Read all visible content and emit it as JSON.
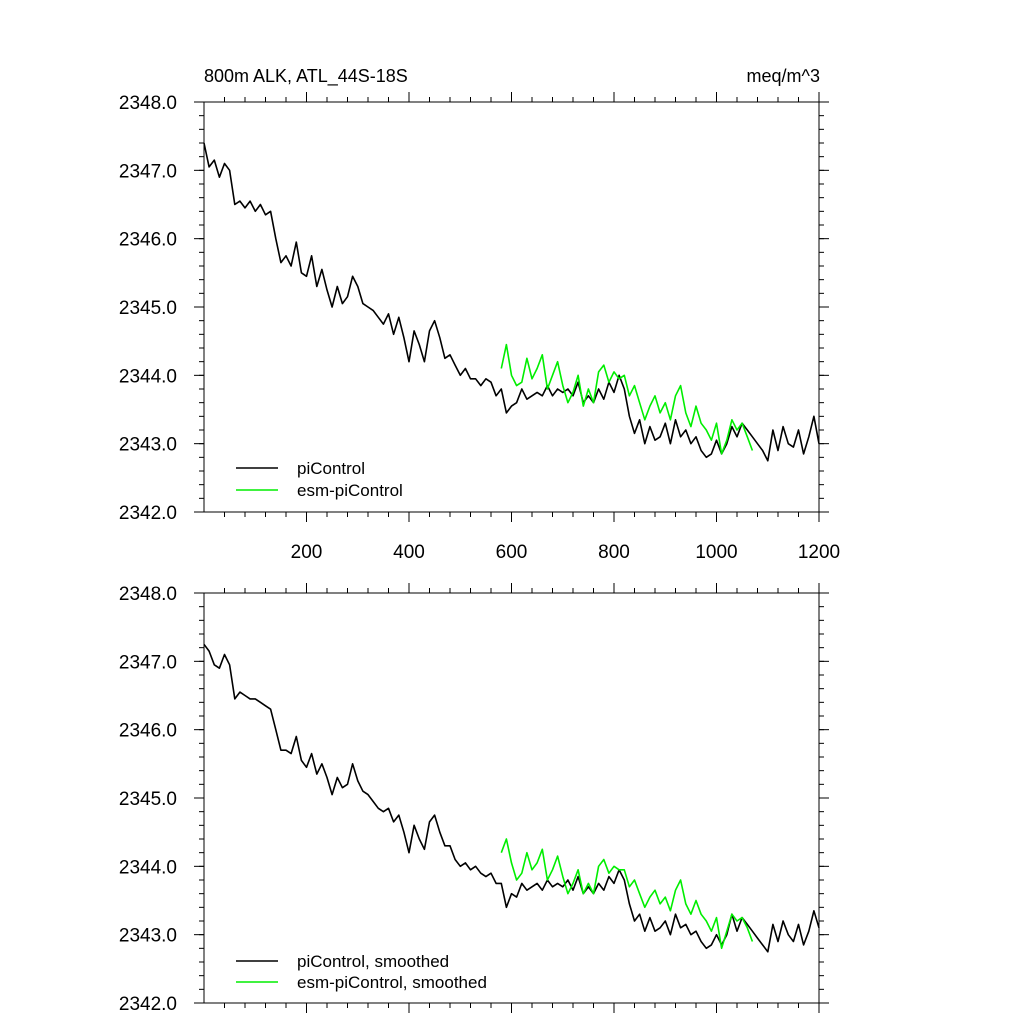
{
  "chart_data": [
    {
      "type": "line",
      "title": "800m ALK, ATL_44S-18S",
      "units": "meq/m^3",
      "xlabel": "",
      "ylabel": "",
      "xlim": [
        0,
        1200
      ],
      "ylim": [
        2342.0,
        2348.0
      ],
      "xticks": [
        200,
        400,
        600,
        800,
        1000,
        1200
      ],
      "xtick_labels": [
        "200",
        "400",
        "600",
        "800",
        "1000",
        "1200"
      ],
      "yticks": [
        2342.0,
        2343.0,
        2344.0,
        2345.0,
        2346.0,
        2347.0,
        2348.0
      ],
      "ytick_labels": [
        "2342.0",
        "2343.0",
        "2344.0",
        "2345.0",
        "2346.0",
        "2347.0",
        "2348.0"
      ],
      "legend_position": "bottom-left",
      "series": [
        {
          "name": "piControl",
          "color": "#000000",
          "x": [
            0,
            10,
            20,
            30,
            40,
            50,
            60,
            70,
            80,
            90,
            100,
            110,
            120,
            130,
            140,
            150,
            160,
            170,
            180,
            190,
            200,
            210,
            220,
            230,
            240,
            250,
            260,
            270,
            280,
            290,
            300,
            310,
            320,
            330,
            340,
            350,
            360,
            370,
            380,
            390,
            400,
            410,
            420,
            430,
            440,
            450,
            460,
            470,
            480,
            490,
            500,
            510,
            520,
            530,
            540,
            550,
            560,
            570,
            580,
            590,
            600,
            610,
            620,
            630,
            640,
            650,
            660,
            670,
            680,
            690,
            700,
            710,
            720,
            730,
            740,
            750,
            760,
            770,
            780,
            790,
            800,
            810,
            820,
            830,
            840,
            850,
            860,
            870,
            880,
            890,
            900,
            910,
            920,
            930,
            940,
            950,
            960,
            970,
            980,
            990,
            1000,
            1010,
            1020,
            1030,
            1040,
            1050,
            1060,
            1070,
            1080,
            1090,
            1100,
            1110,
            1120,
            1130,
            1140,
            1150,
            1160,
            1170,
            1180,
            1190,
            1200
          ],
          "values": [
            2347.4,
            2347.05,
            2347.15,
            2346.9,
            2347.1,
            2347.0,
            2346.5,
            2346.55,
            2346.45,
            2346.55,
            2346.4,
            2346.5,
            2346.35,
            2346.4,
            2346.0,
            2345.65,
            2345.75,
            2345.6,
            2345.95,
            2345.5,
            2345.45,
            2345.75,
            2345.3,
            2345.55,
            2345.25,
            2345.0,
            2345.3,
            2345.05,
            2345.15,
            2345.45,
            2345.3,
            2345.05,
            2345.0,
            2344.95,
            2344.85,
            2344.75,
            2344.9,
            2344.6,
            2344.85,
            2344.55,
            2344.2,
            2344.65,
            2344.45,
            2344.2,
            2344.65,
            2344.8,
            2344.55,
            2344.25,
            2344.3,
            2344.15,
            2344.0,
            2344.1,
            2343.95,
            2343.95,
            2343.85,
            2343.95,
            2343.9,
            2343.7,
            2343.8,
            2343.45,
            2343.55,
            2343.6,
            2343.8,
            2343.65,
            2343.7,
            2343.75,
            2343.7,
            2343.85,
            2343.7,
            2343.8,
            2343.75,
            2343.8,
            2343.7,
            2343.9,
            2343.6,
            2343.7,
            2343.6,
            2343.8,
            2343.65,
            2343.9,
            2343.75,
            2344.0,
            2343.8,
            2343.4,
            2343.15,
            2343.35,
            2343.0,
            2343.25,
            2343.05,
            2343.1,
            2343.3,
            2343.0,
            2343.35,
            2343.1,
            2343.2,
            2343.0,
            2343.1,
            2342.9,
            2342.8,
            2342.85,
            2343.05,
            2342.85,
            2343.0,
            2343.25,
            2343.1,
            2343.3,
            2343.2,
            2343.1,
            2343.0,
            2342.9,
            2342.75,
            2343.2,
            2342.9,
            2343.25,
            2343.0,
            2342.95,
            2343.2,
            2342.85,
            2343.1,
            2343.4,
            2343.0
          ]
        },
        {
          "name": "esm-piControl",
          "color": "#00ee00",
          "x": [
            580,
            590,
            600,
            610,
            620,
            630,
            640,
            650,
            660,
            670,
            680,
            690,
            700,
            710,
            720,
            730,
            740,
            750,
            760,
            770,
            780,
            790,
            800,
            810,
            820,
            830,
            840,
            850,
            860,
            870,
            880,
            890,
            900,
            910,
            920,
            930,
            940,
            950,
            960,
            970,
            980,
            990,
            1000,
            1010,
            1020,
            1030,
            1040,
            1050,
            1060,
            1070
          ],
          "values": [
            2344.1,
            2344.45,
            2344.0,
            2343.85,
            2343.9,
            2344.25,
            2343.95,
            2344.1,
            2344.3,
            2343.8,
            2344.0,
            2344.2,
            2343.85,
            2343.6,
            2343.75,
            2344.0,
            2343.55,
            2343.8,
            2343.6,
            2344.05,
            2344.15,
            2343.9,
            2344.05,
            2343.95,
            2344.0,
            2343.7,
            2343.85,
            2343.6,
            2343.35,
            2343.55,
            2343.7,
            2343.45,
            2343.6,
            2343.35,
            2343.7,
            2343.85,
            2343.45,
            2343.25,
            2343.55,
            2343.3,
            2343.2,
            2343.05,
            2343.3,
            2342.85,
            2343.05,
            2343.35,
            2343.2,
            2343.3,
            2343.1,
            2342.9
          ]
        }
      ]
    },
    {
      "type": "line",
      "title": "",
      "xlabel": "",
      "ylabel": "",
      "xlim": [
        0,
        1200
      ],
      "ylim": [
        2342.0,
        2348.0
      ],
      "xticks": [
        200,
        400,
        600,
        800,
        1000,
        1200
      ],
      "xtick_labels": [],
      "yticks": [
        2342.0,
        2343.0,
        2344.0,
        2345.0,
        2346.0,
        2347.0,
        2348.0
      ],
      "ytick_labels": [
        "2342.0",
        "2343.0",
        "2344.0",
        "2345.0",
        "2346.0",
        "2347.0",
        "2348.0"
      ],
      "legend_position": "bottom-left",
      "series": [
        {
          "name": "piControl, smoothed",
          "color": "#000000",
          "x": [
            0,
            10,
            20,
            30,
            40,
            50,
            60,
            70,
            80,
            90,
            100,
            110,
            120,
            130,
            140,
            150,
            160,
            170,
            180,
            190,
            200,
            210,
            220,
            230,
            240,
            250,
            260,
            270,
            280,
            290,
            300,
            310,
            320,
            330,
            340,
            350,
            360,
            370,
            380,
            390,
            400,
            410,
            420,
            430,
            440,
            450,
            460,
            470,
            480,
            490,
            500,
            510,
            520,
            530,
            540,
            550,
            560,
            570,
            580,
            590,
            600,
            610,
            620,
            630,
            640,
            650,
            660,
            670,
            680,
            690,
            700,
            710,
            720,
            730,
            740,
            750,
            760,
            770,
            780,
            790,
            800,
            810,
            820,
            830,
            840,
            850,
            860,
            870,
            880,
            890,
            900,
            910,
            920,
            930,
            940,
            950,
            960,
            970,
            980,
            990,
            1000,
            1010,
            1020,
            1030,
            1040,
            1050,
            1060,
            1070,
            1080,
            1090,
            1100,
            1110,
            1120,
            1130,
            1140,
            1150,
            1160,
            1170,
            1180,
            1190,
            1200
          ],
          "values": [
            2347.25,
            2347.15,
            2346.95,
            2346.9,
            2347.1,
            2346.95,
            2346.45,
            2346.55,
            2346.5,
            2346.45,
            2346.45,
            2346.4,
            2346.35,
            2346.3,
            2346.0,
            2345.7,
            2345.7,
            2345.65,
            2345.9,
            2345.55,
            2345.45,
            2345.65,
            2345.35,
            2345.5,
            2345.3,
            2345.05,
            2345.3,
            2345.15,
            2345.2,
            2345.5,
            2345.25,
            2345.1,
            2345.05,
            2344.95,
            2344.85,
            2344.8,
            2344.85,
            2344.65,
            2344.75,
            2344.5,
            2344.2,
            2344.6,
            2344.4,
            2344.25,
            2344.65,
            2344.75,
            2344.5,
            2344.3,
            2344.3,
            2344.1,
            2344.0,
            2344.05,
            2343.95,
            2344.0,
            2343.9,
            2343.85,
            2343.9,
            2343.75,
            2343.75,
            2343.4,
            2343.6,
            2343.55,
            2343.75,
            2343.65,
            2343.7,
            2343.75,
            2343.65,
            2343.8,
            2343.7,
            2343.75,
            2343.7,
            2343.8,
            2343.65,
            2343.85,
            2343.6,
            2343.7,
            2343.6,
            2343.75,
            2343.65,
            2343.85,
            2343.75,
            2343.95,
            2343.8,
            2343.45,
            2343.2,
            2343.3,
            2343.05,
            2343.25,
            2343.05,
            2343.1,
            2343.2,
            2343.0,
            2343.3,
            2343.1,
            2343.15,
            2343.0,
            2343.05,
            2342.9,
            2342.8,
            2342.85,
            2343.0,
            2342.85,
            2343.0,
            2343.3,
            2343.05,
            2343.25,
            2343.15,
            2343.05,
            2342.95,
            2342.85,
            2342.75,
            2343.15,
            2342.9,
            2343.2,
            2343.0,
            2342.9,
            2343.15,
            2342.85,
            2343.05,
            2343.35,
            2343.1
          ]
        },
        {
          "name": "esm-piControl, smoothed",
          "color": "#00ee00",
          "x": [
            580,
            590,
            600,
            610,
            620,
            630,
            640,
            650,
            660,
            670,
            680,
            690,
            700,
            710,
            720,
            730,
            740,
            750,
            760,
            770,
            780,
            790,
            800,
            810,
            820,
            830,
            840,
            850,
            860,
            870,
            880,
            890,
            900,
            910,
            920,
            930,
            940,
            950,
            960,
            970,
            980,
            990,
            1000,
            1010,
            1020,
            1030,
            1040,
            1050,
            1060,
            1070
          ],
          "values": [
            2344.2,
            2344.4,
            2344.05,
            2343.8,
            2343.9,
            2344.2,
            2343.95,
            2344.05,
            2344.25,
            2343.8,
            2343.95,
            2344.15,
            2343.85,
            2343.6,
            2343.75,
            2343.95,
            2343.6,
            2343.75,
            2343.6,
            2344.0,
            2344.1,
            2343.9,
            2344.0,
            2343.95,
            2343.95,
            2343.7,
            2343.8,
            2343.6,
            2343.4,
            2343.55,
            2343.65,
            2343.45,
            2343.55,
            2343.35,
            2343.65,
            2343.8,
            2343.45,
            2343.3,
            2343.5,
            2343.3,
            2343.2,
            2343.05,
            2343.25,
            2342.8,
            2343.05,
            2343.3,
            2343.2,
            2343.25,
            2343.1,
            2342.9
          ]
        }
      ]
    }
  ]
}
